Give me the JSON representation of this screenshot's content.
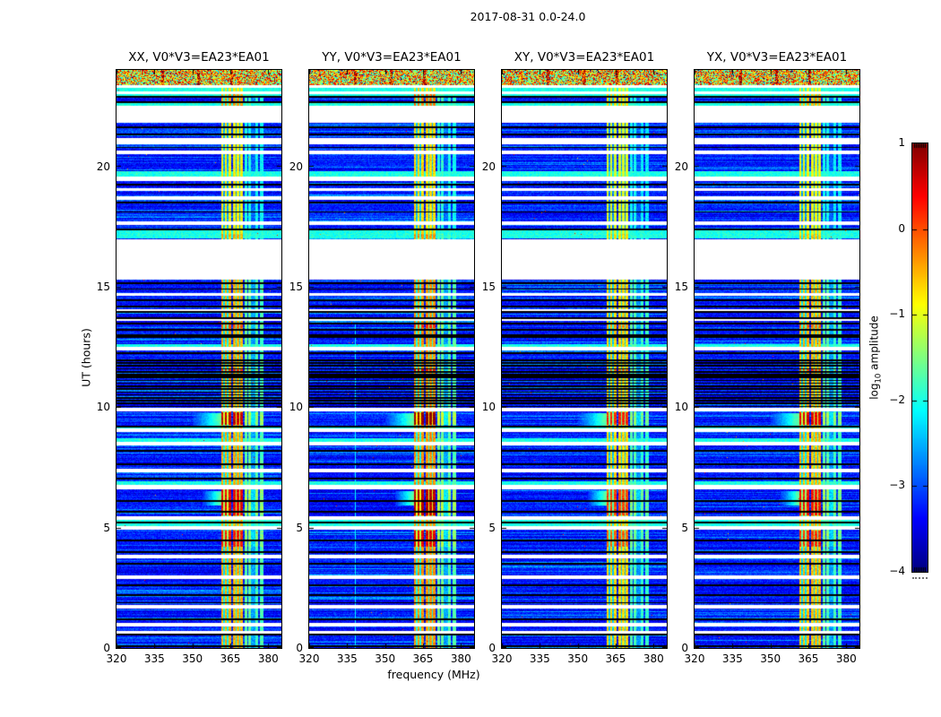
{
  "figure": {
    "background": "#ffffff",
    "text_color": "#000000"
  },
  "chart_data": {
    "type": "heatmap",
    "title": "2017-08-31 0.0-24.0",
    "xlabel": "frequency (MHz)",
    "ylabel": "UT (hours)",
    "x_range": [
      320,
      385.2
    ],
    "y_range": [
      0,
      24
    ],
    "xticks": [
      320,
      335,
      350,
      365,
      380
    ],
    "yticks": [
      0,
      5,
      10,
      15,
      20
    ],
    "grid": false,
    "panels": [
      {
        "id": "xx",
        "title": "XX, V0*V3=EA23*EA01",
        "seed": 11,
        "rfi_gain": 1.0,
        "blob_gain": 1.0,
        "has_vline": false
      },
      {
        "id": "yy",
        "title": "YY, V0*V3=EA23*EA01",
        "seed": 22,
        "rfi_gain": 1.05,
        "blob_gain": 1.15,
        "has_vline": true
      },
      {
        "id": "xy",
        "title": "XY, V0*V3=EA23*EA01",
        "seed": 33,
        "rfi_gain": 0.92,
        "blob_gain": 0.78,
        "has_vline": false
      },
      {
        "id": "yx",
        "title": "YX, V0*V3=EA23*EA01",
        "seed": 44,
        "rfi_gain": 0.97,
        "blob_gain": 0.92,
        "has_vline": false
      }
    ],
    "colorbar": {
      "label_prefix": "log",
      "label_sub": "10",
      "label_suffix": " amplitude",
      "colormap": "jet",
      "orientation": "vertical",
      "range": [
        -4,
        1
      ],
      "tick_values": [
        1,
        0,
        -1,
        -2,
        -3,
        -4
      ],
      "tick_labels": [
        "1",
        "0",
        "−1",
        "−2",
        "−3",
        "−4"
      ],
      "dash_values": [
        0,
        -1,
        -2,
        -3
      ]
    },
    "features": {
      "background_log_amp": -3.3,
      "white_gaps": [
        [
          0.58,
          0.72
        ],
        [
          0.9,
          1.04
        ],
        [
          1.62,
          1.78
        ],
        [
          2.85,
          3.0
        ],
        [
          3.72,
          3.88
        ],
        [
          4.9,
          5.05
        ],
        [
          5.32,
          5.48
        ],
        [
          6.6,
          6.76
        ],
        [
          7.3,
          7.46
        ],
        [
          8.4,
          8.56
        ],
        [
          8.95,
          9.1
        ],
        [
          9.82,
          9.97
        ],
        [
          12.35,
          12.5
        ],
        [
          13.58,
          13.66
        ],
        [
          14.0,
          14.08
        ],
        [
          14.62,
          14.74
        ],
        [
          15.3,
          16.95
        ],
        [
          17.58,
          17.72
        ],
        [
          18.62,
          18.76
        ],
        [
          18.98,
          19.1
        ],
        [
          19.38,
          19.58
        ],
        [
          20.5,
          20.66
        ],
        [
          20.92,
          21.18
        ],
        [
          21.8,
          22.5
        ],
        [
          23.0,
          23.12
        ],
        [
          23.26,
          23.36
        ]
      ],
      "black_lines": [
        0.08,
        0.55,
        1.18,
        1.88,
        2.2,
        2.62,
        3.5,
        3.98,
        4.45,
        5.22,
        5.65,
        6.1,
        7.02,
        7.62,
        8.2,
        9.18,
        12.24,
        12.92,
        17.38,
        18.1,
        18.5,
        19.25,
        20.78,
        21.32,
        21.62,
        22.66,
        22.88,
        23.38
      ],
      "dense_bands": [
        {
          "range": [
            10.0,
            12.0
          ],
          "period": 0.12,
          "duty": 0.5
        },
        {
          "range": [
            12.95,
            15.28
          ],
          "period": 0.24,
          "duty": 0.28
        }
      ],
      "solid_black": [
        [
          11.22,
          11.38
        ]
      ],
      "cyan_rows": [
        [
          5.05,
          5.32
        ],
        [
          6.76,
          6.92
        ],
        [
          8.56,
          8.72
        ],
        [
          9.1,
          9.2
        ],
        [
          12.5,
          12.62
        ],
        [
          17.0,
          17.38
        ],
        [
          19.58,
          19.78
        ],
        [
          22.5,
          22.66
        ],
        [
          22.88,
          23.0
        ],
        [
          23.12,
          23.26
        ]
      ],
      "rfi_columns": [
        [
          361.3,
          365.2,
          1.0
        ],
        [
          366.0,
          369.9,
          1.0
        ],
        [
          370.6,
          373.2,
          0.55
        ],
        [
          373.2,
          374.8,
          0.18
        ],
        [
          374.8,
          378.1,
          0.5
        ]
      ],
      "rfi_dark_vlines": [
        362.4,
        363.9,
        367.3,
        368.7,
        371.9,
        376.3
      ],
      "blobs": [
        [
          9.25,
          9.78,
          1.15
        ],
        [
          4.2,
          4.88,
          0.75
        ],
        [
          5.5,
          6.58,
          0.95
        ],
        [
          22.5,
          23.0,
          0.45
        ],
        [
          11.5,
          11.62,
          0.6
        ],
        [
          13.3,
          13.44,
          0.45
        ],
        [
          17.0,
          17.2,
          0.35
        ]
      ],
      "cyan_tails": [
        [
          9.2,
          9.75,
          350,
          361.3
        ],
        [
          5.9,
          6.5,
          354,
          361.3
        ]
      ],
      "topband": [
        23.36,
        24.0
      ],
      "topband_hot_freqs": [
        338.2,
        352.5,
        365.5
      ],
      "vline": {
        "freq": 338.3,
        "ut": [
          0,
          13.5
        ]
      }
    }
  }
}
